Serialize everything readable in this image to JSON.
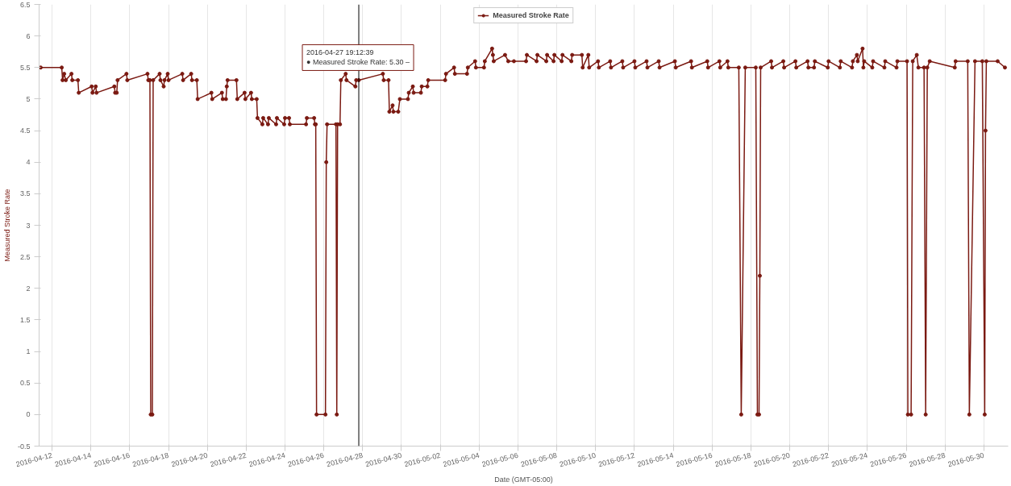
{
  "chart_data": {
    "type": "line",
    "xlabel": "Date (GMT-05:00)",
    "ylabel": "Measured Stroke Rate",
    "xlim": [
      "2016-04-11T08:00",
      "2016-05-31T06:00"
    ],
    "xticks": [
      "2016-04-12",
      "2016-04-14",
      "2016-04-16",
      "2016-04-18",
      "2016-04-20",
      "2016-04-22",
      "2016-04-24",
      "2016-04-26",
      "2016-04-28",
      "2016-04-30",
      "2016-05-02",
      "2016-05-04",
      "2016-05-06",
      "2016-05-08",
      "2016-05-10",
      "2016-05-12",
      "2016-05-14",
      "2016-05-16",
      "2016-05-18",
      "2016-05-20",
      "2016-05-22",
      "2016-05-24",
      "2016-05-26",
      "2016-05-28",
      "2016-05-30"
    ],
    "ylim": [
      -0.5,
      6.5
    ],
    "yticks": [
      -0.5,
      0,
      0.5,
      1,
      1.5,
      2,
      2.5,
      3,
      3.5,
      4,
      4.5,
      5,
      5.5,
      6,
      6.5
    ],
    "grid": "x",
    "legend": "top",
    "marker": "circle",
    "line_style": "solid",
    "ref_lines": [
      {
        "axis": "x",
        "value": "2016-04-27T19:12:39",
        "label": null,
        "color": "#000000"
      }
    ],
    "annotations": [
      {
        "text": "2016-04-27 19:12:39\n● Measured Stroke Rate: 5.30 –",
        "x": "2016-04-27T19:12:39",
        "y": 5.3
      }
    ],
    "series": [
      {
        "name": "Measured Stroke Rate",
        "color": "#7b1a12",
        "x": [
          "2016-04-11T10:00",
          "2016-04-12T12:00",
          "2016-04-12T13:00",
          "2016-04-12T15:00",
          "2016-04-12T17:00",
          "2016-04-13T00:00",
          "2016-04-13T01:00",
          "2016-04-13T08:00",
          "2016-04-13T09:00",
          "2016-04-14T01:00",
          "2016-04-14T02:00",
          "2016-04-14T06:00",
          "2016-04-14T07:00",
          "2016-04-15T05:00",
          "2016-04-15T06:00",
          "2016-04-15T08:00",
          "2016-04-15T09:00",
          "2016-04-15T20:00",
          "2016-04-15T21:00",
          "2016-04-16T22:00",
          "2016-04-16T23:00",
          "2016-04-17T01:00",
          "2016-04-17T02:00",
          "2016-04-17T04:00",
          "2016-04-17T05:00",
          "2016-04-17T13:00",
          "2016-04-17T14:00",
          "2016-04-17T18:00",
          "2016-04-17T19:00",
          "2016-04-17T23:00",
          "2016-04-18T00:00",
          "2016-04-18T17:00",
          "2016-04-18T18:00",
          "2016-04-19T04:00",
          "2016-04-19T05:00",
          "2016-04-19T11:00",
          "2016-04-19T12:00",
          "2016-04-20T05:00",
          "2016-04-20T06:00",
          "2016-04-20T18:00",
          "2016-04-20T19:00",
          "2016-04-20T23:00",
          "2016-04-21T00:00",
          "2016-04-21T01:00",
          "2016-04-21T12:00",
          "2016-04-21T13:00",
          "2016-04-21T22:00",
          "2016-04-21T23:00",
          "2016-04-22T06:00",
          "2016-04-22T07:00",
          "2016-04-22T13:00",
          "2016-04-22T14:00",
          "2016-04-22T20:00",
          "2016-04-22T21:00",
          "2016-04-23T03:00",
          "2016-04-23T04:00",
          "2016-04-23T13:00",
          "2016-04-23T14:00",
          "2016-04-23T23:00",
          "2016-04-24T00:00",
          "2016-04-24T05:00",
          "2016-04-24T06:00",
          "2016-04-25T02:00",
          "2016-04-25T03:00",
          "2016-04-25T12:00",
          "2016-04-25T13:00",
          "2016-04-25T14:00",
          "2016-04-25T15:00",
          "2016-04-26T02:00",
          "2016-04-26T03:00",
          "2016-04-26T04:00",
          "2016-04-26T15:00",
          "2016-04-26T16:00",
          "2016-04-26T17:00",
          "2016-04-26T20:00",
          "2016-04-26T21:00",
          "2016-04-27T03:00",
          "2016-04-27T04:00",
          "2016-04-27T15:00",
          "2016-04-27T16:00",
          "2016-04-27T19:12:39",
          "2016-04-29T01:00",
          "2016-04-29T02:00",
          "2016-04-29T08:00",
          "2016-04-29T09:00",
          "2016-04-29T13:00",
          "2016-04-29T14:00",
          "2016-04-29T20:00",
          "2016-04-29T22:00",
          "2016-04-30T08:00",
          "2016-04-30T09:00",
          "2016-04-30T14:00",
          "2016-04-30T15:00",
          "2016-05-01T00:00",
          "2016-05-01T01:00",
          "2016-05-01T08:00",
          "2016-05-01T09:00",
          "2016-05-02T06:00",
          "2016-05-02T07:00",
          "2016-05-02T17:00",
          "2016-05-02T18:00",
          "2016-05-03T09:00",
          "2016-05-03T10:00",
          "2016-05-03T19:00",
          "2016-05-03T20:00",
          "2016-05-04T06:00",
          "2016-05-04T07:00",
          "2016-05-04T16:00",
          "2016-05-04T17:00",
          "2016-05-04T18:00",
          "2016-05-05T08:00",
          "2016-05-05T12:00",
          "2016-05-05T19:00",
          "2016-05-06T10:00",
          "2016-05-06T11:00",
          "2016-05-06T23:00",
          "2016-05-07T00:00",
          "2016-05-07T11:00",
          "2016-05-07T12:00",
          "2016-05-07T20:00",
          "2016-05-07T21:00",
          "2016-05-08T06:00",
          "2016-05-08T07:00",
          "2016-05-08T18:00",
          "2016-05-08T19:00",
          "2016-05-09T07:00",
          "2016-05-09T08:00",
          "2016-05-09T15:00",
          "2016-05-09T16:00",
          "2016-05-10T03:00",
          "2016-05-10T04:00",
          "2016-05-10T18:00",
          "2016-05-10T19:00",
          "2016-05-11T09:00",
          "2016-05-11T10:00",
          "2016-05-12T00:00",
          "2016-05-12T01:00",
          "2016-05-12T15:00",
          "2016-05-12T16:00",
          "2016-05-13T06:00",
          "2016-05-13T07:00",
          "2016-05-14T02:00",
          "2016-05-14T03:00",
          "2016-05-14T22:00",
          "2016-05-14T23:00",
          "2016-05-15T18:00",
          "2016-05-15T19:00",
          "2016-05-16T09:00",
          "2016-05-16T10:00",
          "2016-05-16T19:00",
          "2016-05-16T20:00",
          "2016-05-17T09:00",
          "2016-05-17T12:00",
          "2016-05-17T17:00",
          "2016-05-18T06:00",
          "2016-05-18T08:00",
          "2016-05-18T10:00",
          "2016-05-18T11:00",
          "2016-05-18T12:00",
          "2016-05-19T01:00",
          "2016-05-19T02:00",
          "2016-05-19T16:00",
          "2016-05-19T17:00",
          "2016-05-20T07:00",
          "2016-05-20T08:00",
          "2016-05-20T22:00",
          "2016-05-20T23:00",
          "2016-05-21T06:00",
          "2016-05-21T07:00",
          "2016-05-21T23:00",
          "2016-05-22T00:00",
          "2016-05-22T14:00",
          "2016-05-22T15:00",
          "2016-05-23T05:00",
          "2016-05-23T06:00",
          "2016-05-23T11:00",
          "2016-05-23T12:00",
          "2016-05-23T18:00",
          "2016-05-23T19:00",
          "2016-05-23T20:00",
          "2016-05-24T06:00",
          "2016-05-24T07:00",
          "2016-05-24T21:00",
          "2016-05-24T22:00",
          "2016-05-25T12:00",
          "2016-05-25T13:00",
          "2016-05-26T01:00",
          "2016-05-26T02:00",
          "2016-05-26T06:00",
          "2016-05-26T08:00",
          "2016-05-26T13:00",
          "2016-05-26T15:00",
          "2016-05-26T22:00",
          "2016-05-27T00:00",
          "2016-05-27T02:00",
          "2016-05-27T05:00",
          "2016-05-28T12:00",
          "2016-05-28T13:00",
          "2016-05-29T04:00",
          "2016-05-29T06:00",
          "2016-05-29T13:00",
          "2016-05-29T22:00",
          "2016-05-30T01:00",
          "2016-05-30T02:00",
          "2016-05-30T03:00",
          "2016-05-30T17:00",
          "2016-05-31T02:00"
        ],
        "values": [
          5.5,
          5.5,
          5.3,
          5.4,
          5.3,
          5.4,
          5.3,
          5.3,
          5.1,
          5.2,
          5.1,
          5.2,
          5.1,
          5.2,
          5.1,
          5.1,
          5.3,
          5.4,
          5.3,
          5.4,
          5.3,
          5.3,
          0,
          0,
          5.3,
          5.4,
          5.3,
          5.2,
          5.3,
          5.4,
          5.3,
          5.4,
          5.3,
          5.4,
          5.3,
          5.3,
          5.0,
          5.1,
          5.0,
          5.1,
          5.0,
          5.0,
          5.2,
          5.3,
          5.3,
          5.0,
          5.1,
          5.0,
          5.1,
          5.0,
          5.0,
          4.7,
          4.6,
          4.7,
          4.6,
          4.7,
          4.6,
          4.7,
          4.6,
          4.7,
          4.7,
          4.6,
          4.6,
          4.7,
          4.7,
          4.6,
          4.6,
          0,
          0,
          4.0,
          4.6,
          4.6,
          0,
          4.6,
          4.6,
          5.3,
          5.4,
          5.3,
          5.2,
          5.3,
          5.3,
          5.4,
          5.3,
          5.3,
          4.8,
          4.9,
          4.8,
          4.8,
          5.0,
          5.0,
          5.1,
          5.2,
          5.1,
          5.1,
          5.2,
          5.2,
          5.3,
          5.3,
          5.4,
          5.5,
          5.4,
          5.4,
          5.5,
          5.6,
          5.5,
          5.5,
          5.6,
          5.8,
          5.7,
          5.6,
          5.7,
          5.6,
          5.6,
          5.6,
          5.7,
          5.6,
          5.7,
          5.6,
          5.7,
          5.6,
          5.7,
          5.6,
          5.7,
          5.6,
          5.7,
          5.7,
          5.5,
          5.7,
          5.5,
          5.6,
          5.5,
          5.6,
          5.5,
          5.6,
          5.5,
          5.6,
          5.5,
          5.6,
          5.5,
          5.6,
          5.5,
          5.6,
          5.5,
          5.6,
          5.5,
          5.6,
          5.5,
          5.6,
          5.5,
          5.6,
          5.5,
          5.5,
          0,
          5.5,
          5.5,
          0,
          0,
          2.2,
          5.5,
          5.6,
          5.5,
          5.6,
          5.5,
          5.6,
          5.5,
          5.6,
          5.5,
          5.5,
          5.6,
          5.5,
          5.6,
          5.5,
          5.6,
          5.5,
          5.6,
          5.7,
          5.6,
          5.8,
          5.5,
          5.6,
          5.5,
          5.6,
          5.5,
          5.6,
          5.5,
          5.6,
          5.6,
          0,
          0,
          5.6,
          5.7,
          5.5,
          5.5,
          0,
          5.5,
          5.6,
          5.5,
          5.6,
          5.6,
          0,
          5.6,
          5.6,
          0,
          4.5,
          5.6,
          5.6,
          5.5
        ]
      }
    ]
  }
}
